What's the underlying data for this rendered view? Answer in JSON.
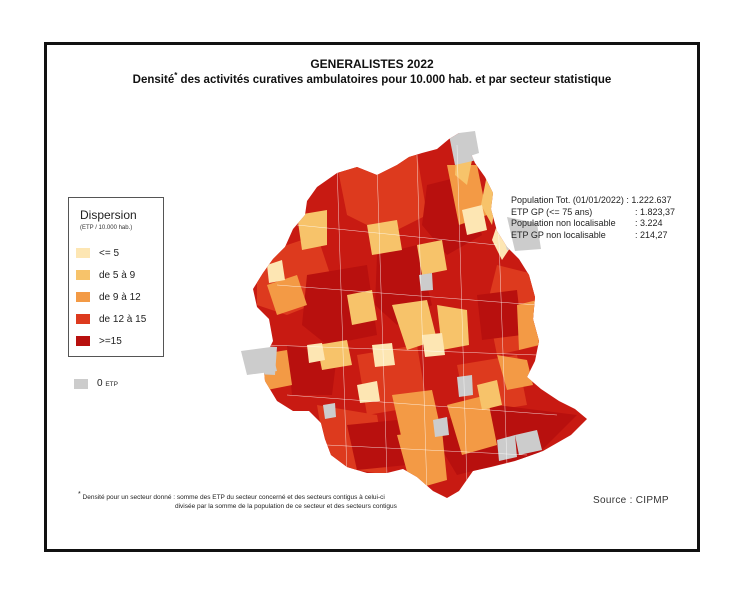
{
  "header": {
    "title": "GENERALISTES 2022",
    "subtitle_main": "Densité",
    "subtitle_mark": "*",
    "subtitle_rest": " des activités curatives ambulatoires pour 10.000 hab. et par secteur statistique"
  },
  "legend": {
    "title": "Dispersion",
    "unit": "(ETP / 10.000 hab.)",
    "classes": [
      {
        "label": "<= 5",
        "color": "#fde6b3"
      },
      {
        "label": "de 5 à 9",
        "color": "#f7c36a"
      },
      {
        "label": "de 9 à 12",
        "color": "#f39a45"
      },
      {
        "label": "de 12 à 15",
        "color": "#dd3a1e"
      },
      {
        "label": ">=15",
        "color": "#b8100e"
      }
    ],
    "zero": {
      "label": "0",
      "unit": "ETP",
      "color": "#cccccc"
    }
  },
  "stats": [
    {
      "label": "Population Tot. (01/01/2022) : 1.222.637",
      "value": ""
    },
    {
      "label": "ETP GP (<= 75 ans)",
      "value": ": 1.823,37"
    },
    {
      "label": "Population non localisable",
      "value": ": 3.224"
    },
    {
      "label": "ETP GP non localisable",
      "value": ": 214,27"
    }
  ],
  "footnote": {
    "mark": "*",
    "line1": " Densité pour un secteur donné : somme des ETP du secteur concerné et des secteurs contigus à celui-ci",
    "line2": "divisée par la somme de la population de ce secteur et des secteurs contigus"
  },
  "source": "Source : CIPMP"
}
